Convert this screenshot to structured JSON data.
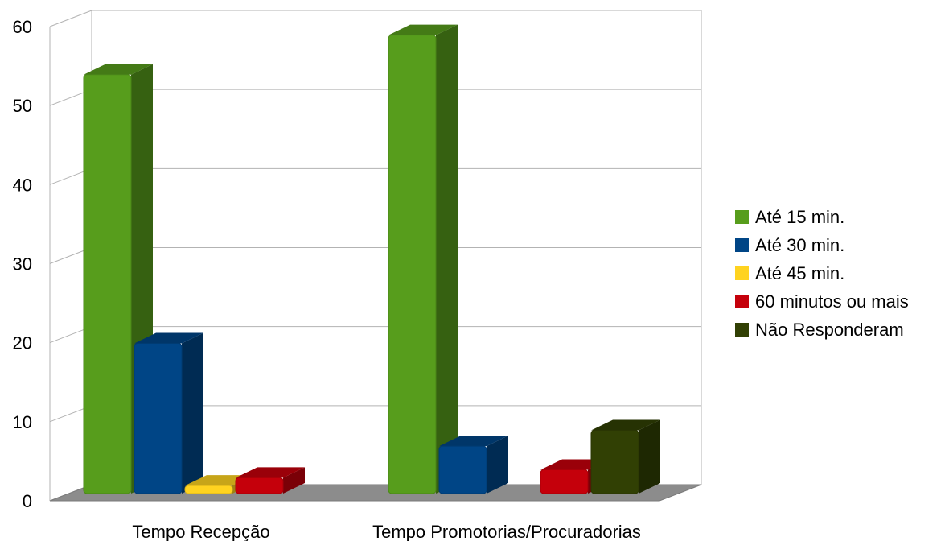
{
  "chart_data": {
    "type": "bar",
    "categories": [
      "Tempo Recepção",
      "Tempo Promotorias/Procuradorias"
    ],
    "series": [
      {
        "name": "Até 15 min.",
        "color": "#579d1c",
        "values": [
          53,
          58
        ]
      },
      {
        "name": "Até 30 min.",
        "color": "#004586",
        "values": [
          19,
          6
        ]
      },
      {
        "name": "Até 45 min.",
        "color": "#ffd320",
        "values": [
          1,
          0
        ]
      },
      {
        "name": "60 minutos ou mais",
        "color": "#c5000b",
        "values": [
          2,
          3
        ]
      },
      {
        "name": "Não Responderam",
        "color": "#314004",
        "values": [
          0,
          8
        ]
      }
    ],
    "ylim": [
      0,
      60
    ],
    "yticks": [
      "0",
      "10",
      "20",
      "30",
      "40",
      "50",
      "60"
    ],
    "grid": true,
    "legend_position": "right",
    "style": "3d-bar"
  }
}
